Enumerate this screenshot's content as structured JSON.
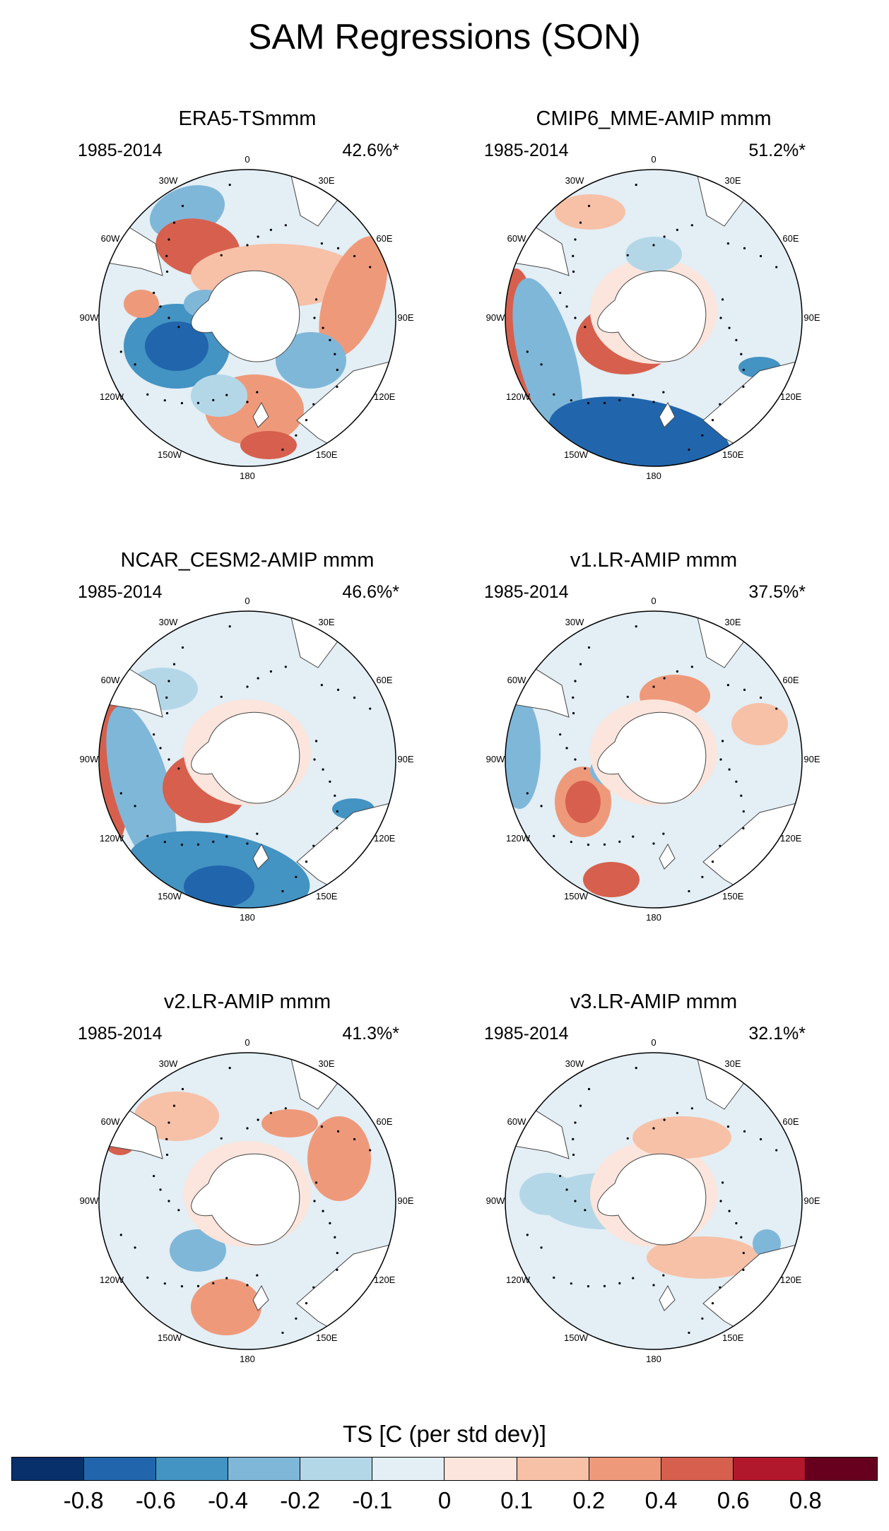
{
  "title": "SAM Regressions (SON)",
  "lon_labels": {
    "top": "0",
    "tr": "30E",
    "r1": "60E",
    "r2": "90E",
    "r3": "120E",
    "br": "150E",
    "bottom": "180",
    "bl": "150W",
    "l3": "120W",
    "l2": "90W",
    "l1": "60W",
    "tl": "30W"
  },
  "panels": [
    {
      "title": "ERA5-TSmmm",
      "period": "1985-2014",
      "percent": "42.6%*"
    },
    {
      "title": "CMIP6_MME-AMIP  mmm",
      "period": "1985-2014",
      "percent": "51.2%*"
    },
    {
      "title": "NCAR_CESM2-AMIP  mmm",
      "period": "1985-2014",
      "percent": "46.6%*"
    },
    {
      "title": "v1.LR-AMIP  mmm",
      "period": "1985-2014",
      "percent": "37.5%*"
    },
    {
      "title": "v2.LR-AMIP  mmm",
      "period": "1985-2014",
      "percent": "41.3%*"
    },
    {
      "title": "v3.LR-AMIP  mmm",
      "period": "1985-2014",
      "percent": "32.1%*"
    }
  ],
  "colorbar": {
    "title": "TS [C (per std dev)]",
    "colors": [
      "#08306b",
      "#2166ac",
      "#4393c3",
      "#7fb7d9",
      "#b4d7e8",
      "#e3eef5",
      "#fbe5dc",
      "#f7c1a8",
      "#ee9a7a",
      "#d6604d",
      "#b2182b",
      "#67001f"
    ],
    "labels": [
      "-0.8",
      "-0.6",
      "-0.4",
      "-0.2",
      "-0.1",
      "0",
      "0.1",
      "0.2",
      "0.4",
      "0.6",
      "0.8"
    ]
  }
}
